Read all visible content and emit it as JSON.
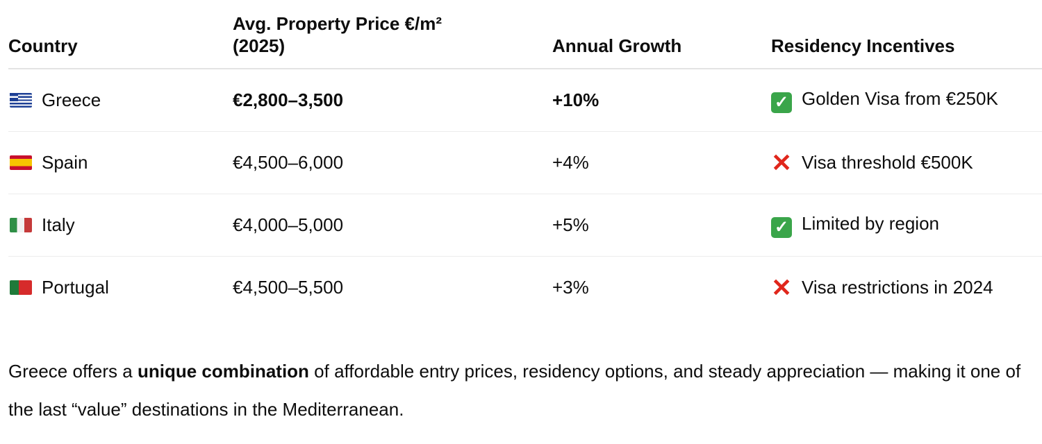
{
  "table": {
    "headers": [
      "Country",
      "Avg. Property Price €/m² (2025)",
      "Annual Growth",
      "Residency Incentives"
    ],
    "header_line2": "(2025)",
    "header_price_line1": "Avg. Property Price €/m²",
    "rows": [
      {
        "flag": "greece-flag",
        "country": "Greece",
        "price": "€2,800–3,500",
        "growth": "+10%",
        "incentive_icon": "check-icon",
        "incentive": "Golden Visa from €250K",
        "bold": true
      },
      {
        "flag": "spain-flag",
        "country": "Spain",
        "price": "€4,500–6,000",
        "growth": "+4%",
        "incentive_icon": "cross-icon",
        "incentive": "Visa threshold €500K"
      },
      {
        "flag": "italy-flag",
        "country": "Italy",
        "price": "€4,000–5,000",
        "growth": "+5%",
        "incentive_icon": "check-icon",
        "incentive": "Limited by region"
      },
      {
        "flag": "portugal-flag",
        "country": "Portugal",
        "price": "€4,500–5,500",
        "growth": "+3%",
        "incentive_icon": "cross-icon",
        "incentive": "Visa restrictions in 2024"
      }
    ]
  },
  "paragraph": {
    "before": "Greece offers a ",
    "bold": "unique combination",
    "after": " of affordable entry prices, residency options, and steady appreciation — making it one of the last “value” destinations in the Mediterranean."
  },
  "colors": {
    "check": "#3aa54a",
    "cross": "#e0261b"
  }
}
